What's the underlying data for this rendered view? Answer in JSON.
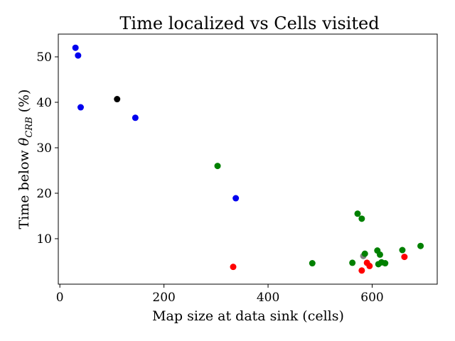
{
  "chart_data": {
    "type": "scatter",
    "title": "Time localized vs Cells visited",
    "xlabel": "Map size at data sink (cells)",
    "ylabel_prefix": "Time below ",
    "ylabel_symbol": "θ",
    "ylabel_subscript": "CRB",
    "ylabel_suffix": " (%)",
    "xlim": [
      -3,
      725
    ],
    "ylim": [
      0,
      55
    ],
    "xticks": [
      0,
      200,
      400,
      600
    ],
    "yticks": [
      10,
      20,
      30,
      40,
      50
    ],
    "grid": false,
    "points": [
      {
        "x": 30,
        "y": 52.0,
        "color": "#0000ee"
      },
      {
        "x": 35,
        "y": 50.3,
        "color": "#0000ee"
      },
      {
        "x": 40,
        "y": 38.9,
        "color": "#0000ee"
      },
      {
        "x": 110,
        "y": 40.7,
        "color": "#000000"
      },
      {
        "x": 145,
        "y": 36.6,
        "color": "#0000ee"
      },
      {
        "x": 303,
        "y": 26.0,
        "color": "#008000"
      },
      {
        "x": 338,
        "y": 18.9,
        "color": "#0000ee"
      },
      {
        "x": 333,
        "y": 3.8,
        "color": "#ff0000"
      },
      {
        "x": 485,
        "y": 4.6,
        "color": "#008000"
      },
      {
        "x": 562,
        "y": 4.7,
        "color": "#008000"
      },
      {
        "x": 572,
        "y": 15.5,
        "color": "#008000"
      },
      {
        "x": 580,
        "y": 14.4,
        "color": "#008000"
      },
      {
        "x": 580,
        "y": 3.0,
        "color": "#ff0000"
      },
      {
        "x": 583,
        "y": 6.2,
        "color": "#808080"
      },
      {
        "x": 586,
        "y": 6.7,
        "color": "#008000"
      },
      {
        "x": 590,
        "y": 4.7,
        "color": "#ff0000"
      },
      {
        "x": 595,
        "y": 4.0,
        "color": "#ff0000"
      },
      {
        "x": 610,
        "y": 7.4,
        "color": "#008000"
      },
      {
        "x": 612,
        "y": 4.4,
        "color": "#008000"
      },
      {
        "x": 615,
        "y": 6.5,
        "color": "#008000"
      },
      {
        "x": 618,
        "y": 4.8,
        "color": "#008000"
      },
      {
        "x": 625,
        "y": 4.6,
        "color": "#008000"
      },
      {
        "x": 658,
        "y": 7.5,
        "color": "#008000"
      },
      {
        "x": 662,
        "y": 6.0,
        "color": "#ff0000"
      },
      {
        "x": 693,
        "y": 8.4,
        "color": "#008000"
      }
    ]
  }
}
